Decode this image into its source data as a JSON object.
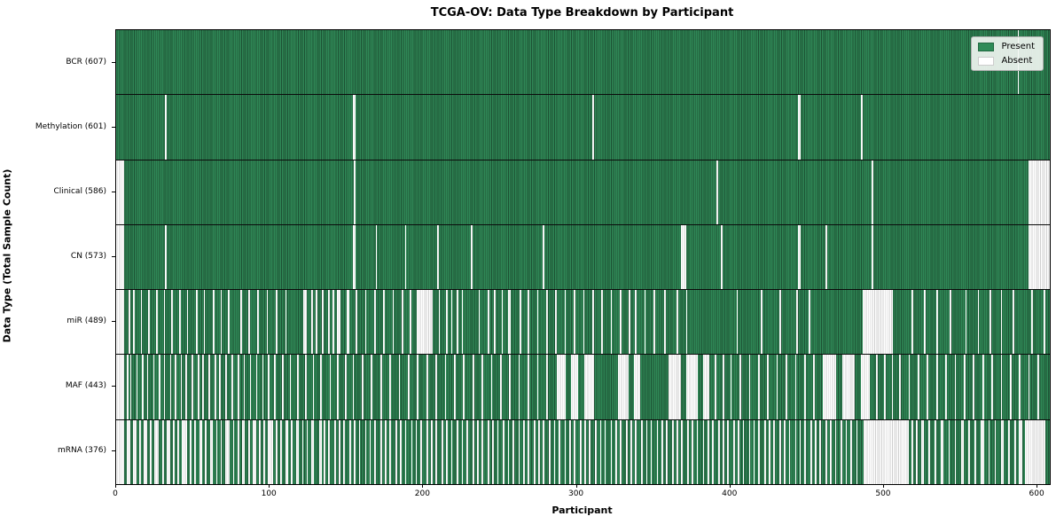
{
  "title": "TCGA-OV: Data Type Breakdown by Participant",
  "axes": {
    "xlabel": "Participant",
    "ylabel": "Data Type (Total Sample Count)"
  },
  "legend": {
    "items": [
      {
        "label": "Present",
        "color": "#2e8b57"
      },
      {
        "label": "Absent",
        "color": "#ffffff"
      }
    ],
    "position": "upper right"
  },
  "colors": {
    "present_fill": "#2e8b57",
    "present_edge": "#1c5133",
    "absent_fill": "#ffffff",
    "absent_edge": "#cfcfcf",
    "spine": "#000000",
    "background": "#ffffff"
  },
  "chart_data": {
    "type": "heatmap",
    "title": "TCGA-OV: Data Type Breakdown by Participant",
    "xlabel": "Participant",
    "ylabel": "Data Type (Total Sample Count)",
    "x_range": [
      0,
      608
    ],
    "x_ticks": [
      0,
      100,
      200,
      300,
      400,
      500,
      600
    ],
    "n_participants": 608,
    "grid": false,
    "legend_position": "upper right",
    "encoding": {
      "present": "seagreen bar",
      "absent": "white bar"
    },
    "rows": [
      {
        "name": "BCR",
        "label": "BCR (607)",
        "present_count": 607,
        "absent_count": 1,
        "absent_ranges": "587"
      },
      {
        "name": "Methylation",
        "label": "Methylation (601)",
        "present_count": 601,
        "absent_count": 7,
        "absent_ranges": "32,154-155,310,444-445,485"
      },
      {
        "name": "Clinical",
        "label": "Clinical (586)",
        "present_count": 586,
        "absent_count": 22,
        "absent_ranges": "0-4,155,391,492,594-607"
      },
      {
        "name": "CN",
        "label": "CN (573)",
        "present_count": 573,
        "absent_count": 35,
        "absent_ranges": "0-4,32,154-155,169,188,209,231,278,368-370,394,444-445,462,492,594-607"
      },
      {
        "name": "miR",
        "label": "miR (489)",
        "present_count": 489,
        "absent_count": 119,
        "absent_ranges": "0-4,8,11,16,21,26,31,36,41,46,52,57,63,68,73,81,86,92,98,104,110,122-123,127,130,134,138,141,144-145,150-151,156,162,168,174,180,186,191,196-205,210,215,218,222,225,236,242,246,251,255-256,263,268,274,280,286,292,298,304,310,316,322,328,334,338,344,350,357,365,371,404,420,432,443,451,486-505,518,526,534,543,553,561,569,576,584,596,604"
      },
      {
        "name": "MAF",
        "label": "MAF (443)",
        "present_count": 443,
        "absent_count": 165,
        "absent_ranges": "0-4,7,9,13,17,20,24,28,31,35,38,42,45,49,53,56,60,64,67,71,75,79,83,87,91,95,99,103,108,113,118,123,128,133,139,144,149,154,160,166,172,178,184,190,196,202,208,214,220,226,232,238,244,250,256,262,268,274,280,287-292,296-300,305-310,327-333,337-340,360-367,371-378,382-385,390,395,400,406,412,418,424,430,436,442,448,454,460-468,473-480,485-490,495,500,505,510,516,522,528,534,540,546,552,558,564,570,576,582,588,594,600"
      },
      {
        "name": "mRNA",
        "label": "mRNA (376)",
        "present_count": 376,
        "absent_count": 232,
        "absent_ranges": "0-4,7-8,11-12,15,18-19,22,25-27,30,33-34,37,40,43-45,48,51,54-55,58,61-62,65,68,71-73,76,79,82-83,86,89-90,93,96,99-101,104,107,110-111,114,117-118,121,124,127-128,132-133,135,138,142,145,148,152,155,158,162,165,168,172,175,178,182,185,188,192,195,198,202,205,208,212,215,218,222,225,228,232,235,238,242,245,248,252,255,258,262,265,268,272,275,278,282,285,288,292,295,298,302,305,308,312,315,318,322,325,328,332,335,338,342,345,348,352,355,358,362,365,368,372,375,378,382,385,388,392,395,398,402,405,408,412,415,418,422,425,428,432,435,438,442,445,448,452,455,458,462,465,468,472,475,478,482,487-515,518,521,524-525,529,533,537-538,542,546,550-551,555,559,563-564,568,572,576-577,581,585,588-589,592-604"
      }
    ]
  }
}
